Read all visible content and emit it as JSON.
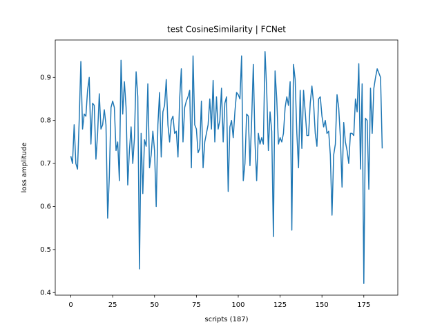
{
  "chart_data": {
    "type": "line",
    "title": "test CosineSimilarity | FCNet",
    "x_label": "scripts (187)",
    "y_label": "loss amplitude",
    "series": [
      {
        "color": "#1f77b4",
        "values": [
          0.717,
          0.7,
          0.79,
          0.7,
          0.687,
          0.8,
          0.937,
          0.78,
          0.815,
          0.81,
          0.87,
          0.9,
          0.745,
          0.84,
          0.835,
          0.71,
          0.77,
          0.862,
          0.78,
          0.79,
          0.825,
          0.79,
          0.573,
          0.67,
          0.83,
          0.845,
          0.83,
          0.73,
          0.75,
          0.66,
          0.94,
          0.815,
          0.89,
          0.83,
          0.65,
          0.73,
          0.785,
          0.7,
          0.76,
          0.913,
          0.855,
          0.455,
          0.77,
          0.63,
          0.755,
          0.74,
          0.885,
          0.69,
          0.72,
          0.775,
          0.73,
          0.6,
          0.79,
          0.865,
          0.715,
          0.82,
          0.835,
          0.895,
          0.79,
          0.75,
          0.8,
          0.81,
          0.77,
          0.775,
          0.715,
          0.85,
          0.92,
          0.75,
          0.83,
          0.845,
          0.855,
          0.87,
          0.69,
          0.95,
          0.79,
          0.78,
          0.725,
          0.735,
          0.845,
          0.69,
          0.75,
          0.77,
          0.79,
          0.85,
          0.78,
          0.893,
          0.75,
          0.855,
          0.78,
          0.8,
          0.875,
          0.75,
          0.84,
          0.855,
          0.635,
          0.785,
          0.8,
          0.76,
          0.82,
          0.865,
          0.86,
          0.85,
          0.95,
          0.66,
          0.7,
          0.815,
          0.81,
          0.695,
          0.8,
          0.93,
          0.75,
          0.66,
          0.77,
          0.745,
          0.76,
          0.745,
          0.96,
          0.87,
          0.73,
          0.82,
          0.775,
          0.53,
          0.915,
          0.85,
          0.745,
          0.76,
          0.75,
          0.77,
          0.83,
          0.855,
          0.835,
          0.89,
          0.545,
          0.93,
          0.895,
          0.77,
          0.69,
          0.87,
          0.735,
          0.87,
          0.82,
          0.765,
          0.765,
          0.84,
          0.88,
          0.84,
          0.77,
          0.74,
          0.85,
          0.855,
          0.81,
          0.785,
          0.8,
          0.77,
          0.775,
          0.72,
          0.58,
          0.72,
          0.745,
          0.86,
          0.83,
          0.76,
          0.645,
          0.795,
          0.75,
          0.73,
          0.7,
          0.77,
          0.77,
          0.765,
          0.85,
          0.82,
          0.932,
          0.687,
          0.885,
          0.421,
          0.805,
          0.8,
          0.64,
          0.875,
          0.77,
          0.875,
          0.9,
          0.92,
          0.91,
          0.9,
          0.735
        ]
      }
    ],
    "xlim": [
      -9.3,
      195.3
    ],
    "ylim": [
      0.394,
      0.987
    ],
    "xticks": [
      0,
      25,
      50,
      75,
      100,
      125,
      150,
      175
    ],
    "yticks": [
      0.4,
      0.5,
      0.6,
      0.7,
      0.8,
      0.9
    ]
  }
}
